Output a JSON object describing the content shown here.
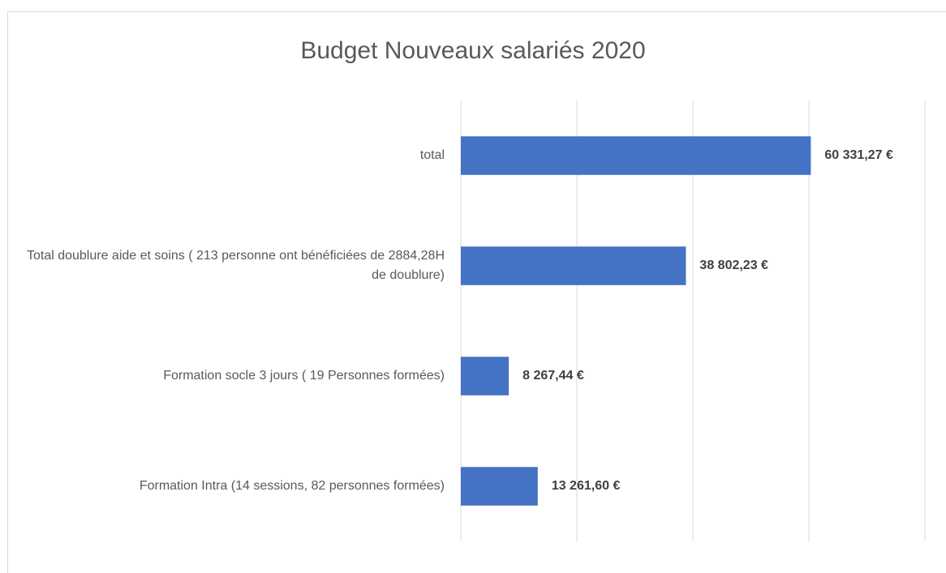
{
  "chart_data": {
    "type": "hbar",
    "title": "Budget Nouveaux salariés 2020",
    "categories": [
      "total",
      "Total doublure aide et soins ( 213 personne ont bénéficiées de 2884,28H de doublure)",
      "Formation socle 3 jours ( 19 Personnes formées)",
      "Formation Intra (14 sessions, 82 personnes formées)"
    ],
    "values": [
      60331.27,
      38802.23,
      8267.44,
      13261.6
    ],
    "value_labels": [
      "60 331,27 €",
      "38 802,23 €",
      "8 267,44 €",
      "13 261,60 €"
    ],
    "color": "#4472c4",
    "xlim": [
      0,
      80000
    ],
    "xticks": [
      0,
      20000,
      40000,
      60000,
      80000
    ],
    "grid": true
  }
}
